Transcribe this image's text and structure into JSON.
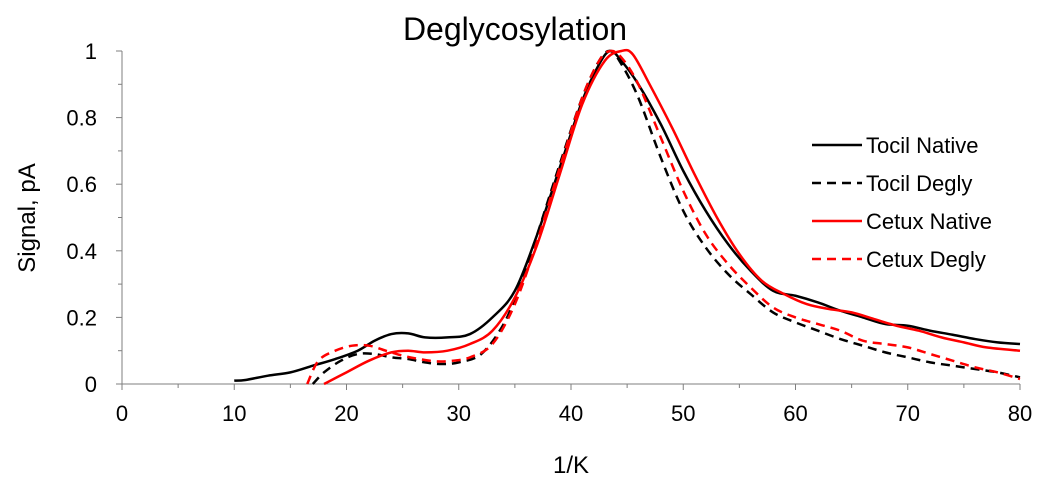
{
  "chart_data": {
    "type": "line",
    "title": "Deglycosylation",
    "xlabel": "1/K",
    "ylabel": "Signal, pA",
    "xlim": [
      0,
      80
    ],
    "ylim": [
      0,
      1
    ],
    "xticks": [
      0,
      10,
      20,
      30,
      40,
      50,
      60,
      70,
      80
    ],
    "yticks": [
      0,
      0.2,
      0.4,
      0.6,
      0.8,
      1
    ],
    "xtick_labels": [
      "0",
      "10",
      "20",
      "30",
      "40",
      "50",
      "60",
      "70",
      "80"
    ],
    "ytick_labels": [
      "0",
      "0.2",
      "0.4",
      "0.6",
      "0.8",
      "1"
    ],
    "grid": false,
    "legend_position": "right",
    "series": [
      {
        "name": "Tocil Native",
        "color": "#000000",
        "dash": "solid",
        "x": [
          10,
          11,
          13,
          15,
          17,
          19,
          21,
          22.5,
          24,
          25.5,
          27,
          29,
          31,
          33,
          35,
          37,
          39,
          41,
          42.5,
          43.5,
          44.5,
          46,
          48,
          50,
          52,
          54,
          56,
          58,
          60,
          62,
          64,
          66,
          68,
          70,
          72,
          74,
          76,
          78,
          80
        ],
        "y": [
          0.01,
          0.012,
          0.025,
          0.035,
          0.055,
          0.075,
          0.1,
          0.13,
          0.15,
          0.152,
          0.14,
          0.14,
          0.15,
          0.2,
          0.28,
          0.45,
          0.65,
          0.85,
          0.96,
          1.0,
          0.97,
          0.9,
          0.78,
          0.64,
          0.52,
          0.42,
          0.34,
          0.28,
          0.265,
          0.245,
          0.22,
          0.2,
          0.18,
          0.175,
          0.16,
          0.148,
          0.135,
          0.125,
          0.12
        ]
      },
      {
        "name": "Tocil Degly",
        "color": "#000000",
        "dash": "dashed",
        "x": [
          17,
          18,
          19.5,
          21,
          22.5,
          24,
          25.5,
          27,
          28.5,
          30,
          32,
          34,
          35.5,
          37,
          39,
          41,
          42.5,
          43.5,
          44.5,
          46,
          48,
          50,
          52,
          54,
          56,
          58,
          60,
          62,
          64,
          66,
          68,
          70,
          72,
          74,
          76,
          78,
          80
        ],
        "y": [
          0.0,
          0.035,
          0.07,
          0.09,
          0.09,
          0.08,
          0.075,
          0.065,
          0.06,
          0.065,
          0.09,
          0.18,
          0.3,
          0.45,
          0.66,
          0.86,
          0.97,
          1.0,
          0.96,
          0.86,
          0.68,
          0.52,
          0.41,
          0.33,
          0.27,
          0.215,
          0.185,
          0.16,
          0.135,
          0.115,
          0.095,
          0.08,
          0.065,
          0.055,
          0.045,
          0.035,
          0.02
        ]
      },
      {
        "name": "Cetux Native",
        "color": "#ff0000",
        "dash": "solid",
        "x": [
          18,
          20,
          22,
          24,
          25.5,
          27,
          29,
          31,
          33,
          35,
          37,
          39,
          41,
          43,
          44.5,
          45.5,
          47,
          49,
          51,
          53,
          55,
          57,
          59,
          61,
          63,
          65,
          67,
          69,
          71,
          73,
          75,
          77,
          80
        ],
        "y": [
          0.0,
          0.035,
          0.07,
          0.095,
          0.1,
          0.095,
          0.1,
          0.12,
          0.16,
          0.26,
          0.42,
          0.63,
          0.84,
          0.97,
          1.0,
          0.99,
          0.9,
          0.77,
          0.63,
          0.5,
          0.39,
          0.31,
          0.27,
          0.24,
          0.225,
          0.215,
          0.195,
          0.175,
          0.16,
          0.14,
          0.125,
          0.11,
          0.1
        ]
      },
      {
        "name": "Cetux Degly",
        "color": "#ff0000",
        "dash": "dashed",
        "x": [
          16.5,
          17.5,
          19,
          20.5,
          22,
          23.5,
          25,
          26.5,
          28,
          29.5,
          31,
          33,
          35,
          37,
          39,
          41,
          42.5,
          43.5,
          44.5,
          46,
          48,
          50,
          52,
          54,
          56,
          58,
          60,
          62,
          64,
          66,
          68,
          70,
          72,
          74,
          76,
          78,
          80
        ],
        "y": [
          0.0,
          0.07,
          0.1,
          0.115,
          0.115,
          0.1,
          0.085,
          0.075,
          0.068,
          0.07,
          0.08,
          0.12,
          0.24,
          0.43,
          0.65,
          0.86,
          0.97,
          1.0,
          0.98,
          0.9,
          0.74,
          0.58,
          0.45,
          0.36,
          0.29,
          0.23,
          0.2,
          0.18,
          0.16,
          0.13,
          0.12,
          0.11,
          0.09,
          0.07,
          0.05,
          0.035,
          0.015
        ]
      }
    ]
  }
}
